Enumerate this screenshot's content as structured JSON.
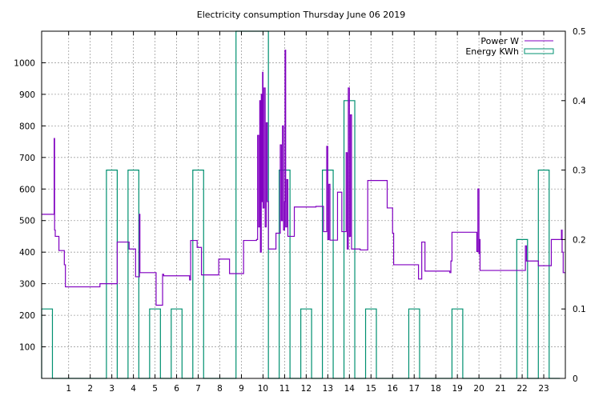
{
  "chart_data": {
    "type": "line",
    "title": "Electricity consumption Thursday June 06 2019",
    "legend_position": "top-right",
    "grid": true,
    "x_axis": {
      "range": [
        -0.25,
        24.0
      ],
      "ticks": [
        1,
        2,
        3,
        4,
        5,
        6,
        7,
        8,
        9,
        10,
        11,
        12,
        13,
        14,
        15,
        16,
        17,
        18,
        19,
        20,
        21,
        22,
        23
      ]
    },
    "y_axis": {
      "range": [
        0,
        1100
      ],
      "ticks": [
        100,
        200,
        300,
        400,
        500,
        600,
        700,
        800,
        900,
        1000
      ]
    },
    "y2_axis": {
      "range": [
        0,
        0.5
      ],
      "ticks": [
        0,
        0.1,
        0.2,
        0.3,
        0.4,
        0.5
      ]
    },
    "series": [
      {
        "name": "Power W",
        "axis": "y",
        "style": "step",
        "color": "#8000c0",
        "points": [
          [
            -0.25,
            520
          ],
          [
            0.3,
            520
          ],
          [
            0.33,
            760
          ],
          [
            0.35,
            470
          ],
          [
            0.38,
            450
          ],
          [
            0.5,
            450
          ],
          [
            0.55,
            405
          ],
          [
            0.75,
            405
          ],
          [
            0.8,
            360
          ],
          [
            0.85,
            290
          ],
          [
            1.0,
            290
          ],
          [
            1.5,
            290
          ],
          [
            2.0,
            290
          ],
          [
            2.4,
            290
          ],
          [
            2.45,
            300
          ],
          [
            3.0,
            300
          ],
          [
            3.2,
            300
          ],
          [
            3.25,
            432
          ],
          [
            3.5,
            432
          ],
          [
            3.75,
            432
          ],
          [
            3.8,
            410
          ],
          [
            4.0,
            410
          ],
          [
            4.1,
            322
          ],
          [
            4.25,
            322
          ],
          [
            4.28,
            520
          ],
          [
            4.3,
            335
          ],
          [
            5.0,
            335
          ],
          [
            5.05,
            232
          ],
          [
            5.3,
            232
          ],
          [
            5.35,
            330
          ],
          [
            5.4,
            325
          ],
          [
            6.0,
            325
          ],
          [
            6.5,
            325
          ],
          [
            6.6,
            312
          ],
          [
            6.65,
            437
          ],
          [
            6.9,
            437
          ],
          [
            6.95,
            415
          ],
          [
            7.1,
            415
          ],
          [
            7.15,
            328
          ],
          [
            7.5,
            328
          ],
          [
            7.9,
            328
          ],
          [
            7.95,
            378
          ],
          [
            8.4,
            378
          ],
          [
            8.45,
            332
          ],
          [
            8.75,
            332
          ],
          [
            9.0,
            332
          ],
          [
            9.1,
            437
          ],
          [
            9.5,
            437
          ],
          [
            9.7,
            440
          ],
          [
            9.75,
            770
          ],
          [
            9.8,
            480
          ],
          [
            9.85,
            880
          ],
          [
            9.88,
            400
          ],
          [
            9.92,
            900
          ],
          [
            9.95,
            560
          ],
          [
            9.98,
            970
          ],
          [
            10.0,
            540
          ],
          [
            10.05,
            920
          ],
          [
            10.1,
            480
          ],
          [
            10.15,
            810
          ],
          [
            10.2,
            560
          ],
          [
            10.25,
            410
          ],
          [
            10.5,
            410
          ],
          [
            10.6,
            460
          ],
          [
            10.75,
            460
          ],
          [
            10.8,
            740
          ],
          [
            10.85,
            500
          ],
          [
            10.9,
            800
          ],
          [
            10.95,
            470
          ],
          [
            11.0,
            560
          ],
          [
            11.02,
            1040
          ],
          [
            11.05,
            480
          ],
          [
            11.1,
            630
          ],
          [
            11.15,
            450
          ],
          [
            11.4,
            450
          ],
          [
            11.45,
            543
          ],
          [
            12.0,
            543
          ],
          [
            12.4,
            543
          ],
          [
            12.45,
            545
          ],
          [
            12.75,
            545
          ],
          [
            12.8,
            465
          ],
          [
            12.9,
            465
          ],
          [
            12.95,
            735
          ],
          [
            13.0,
            440
          ],
          [
            13.05,
            615
          ],
          [
            13.1,
            438
          ],
          [
            13.4,
            438
          ],
          [
            13.45,
            590
          ],
          [
            13.6,
            590
          ],
          [
            13.65,
            465
          ],
          [
            13.8,
            465
          ],
          [
            13.85,
            715
          ],
          [
            13.9,
            410
          ],
          [
            13.95,
            920
          ],
          [
            14.0,
            450
          ],
          [
            14.05,
            835
          ],
          [
            14.1,
            410
          ],
          [
            14.5,
            407
          ],
          [
            14.8,
            407
          ],
          [
            14.85,
            627
          ],
          [
            15.5,
            627
          ],
          [
            15.7,
            627
          ],
          [
            15.75,
            540
          ],
          [
            15.95,
            540
          ],
          [
            16.0,
            460
          ],
          [
            16.05,
            360
          ],
          [
            16.5,
            360
          ],
          [
            17.0,
            360
          ],
          [
            17.15,
            360
          ],
          [
            17.2,
            315
          ],
          [
            17.3,
            315
          ],
          [
            17.35,
            432
          ],
          [
            17.45,
            432
          ],
          [
            17.5,
            340
          ],
          [
            18.0,
            340
          ],
          [
            18.6,
            340
          ],
          [
            18.65,
            335
          ],
          [
            18.7,
            372
          ],
          [
            18.75,
            463
          ],
          [
            19.5,
            463
          ],
          [
            19.85,
            463
          ],
          [
            19.9,
            402
          ],
          [
            19.95,
            600
          ],
          [
            20.0,
            395
          ],
          [
            20.02,
            440
          ],
          [
            20.05,
            342
          ],
          [
            21.0,
            342
          ],
          [
            22.1,
            342
          ],
          [
            22.15,
            420
          ],
          [
            22.2,
            372
          ],
          [
            22.5,
            372
          ],
          [
            22.7,
            372
          ],
          [
            22.75,
            357
          ],
          [
            23.0,
            357
          ],
          [
            23.3,
            357
          ],
          [
            23.35,
            440
          ],
          [
            23.8,
            440
          ],
          [
            23.82,
            470
          ],
          [
            23.85,
            400
          ],
          [
            23.9,
            335
          ],
          [
            24.0,
            335
          ]
        ]
      },
      {
        "name": "Energy KWh",
        "axis": "y2",
        "style": "histeps",
        "color": "#009070",
        "bar_width": 0.5,
        "points": [
          [
            0,
            0.1
          ],
          [
            0.5,
            0
          ],
          [
            1,
            0
          ],
          [
            1.5,
            0
          ],
          [
            2,
            0
          ],
          [
            2.5,
            0
          ],
          [
            3,
            0.3
          ],
          [
            3.5,
            0
          ],
          [
            4,
            0.3
          ],
          [
            4.5,
            0
          ],
          [
            5,
            0.1
          ],
          [
            5.5,
            0
          ],
          [
            6,
            0.1
          ],
          [
            6.5,
            0
          ],
          [
            7,
            0.3
          ],
          [
            7.5,
            0
          ],
          [
            8,
            0
          ],
          [
            8.5,
            0
          ],
          [
            9,
            0.5
          ],
          [
            9.5,
            0.5
          ],
          [
            10,
            0.5
          ],
          [
            10.5,
            0
          ],
          [
            11,
            0.3
          ],
          [
            11.5,
            0
          ],
          [
            12,
            0.1
          ],
          [
            12.5,
            0
          ],
          [
            13,
            0.3
          ],
          [
            13.5,
            0
          ],
          [
            14,
            0.4
          ],
          [
            14.5,
            0
          ],
          [
            15,
            0.1
          ],
          [
            15.5,
            0
          ],
          [
            16,
            0
          ],
          [
            16.5,
            0
          ],
          [
            17,
            0.1
          ],
          [
            17.5,
            0
          ],
          [
            18,
            0
          ],
          [
            18.5,
            0
          ],
          [
            19,
            0.1
          ],
          [
            19.5,
            0
          ],
          [
            20,
            0
          ],
          [
            20.5,
            0
          ],
          [
            21,
            0
          ],
          [
            21.5,
            0
          ],
          [
            22,
            0.2
          ],
          [
            22.5,
            0
          ],
          [
            23,
            0.3
          ],
          [
            23.5,
            0
          ]
        ]
      }
    ]
  }
}
